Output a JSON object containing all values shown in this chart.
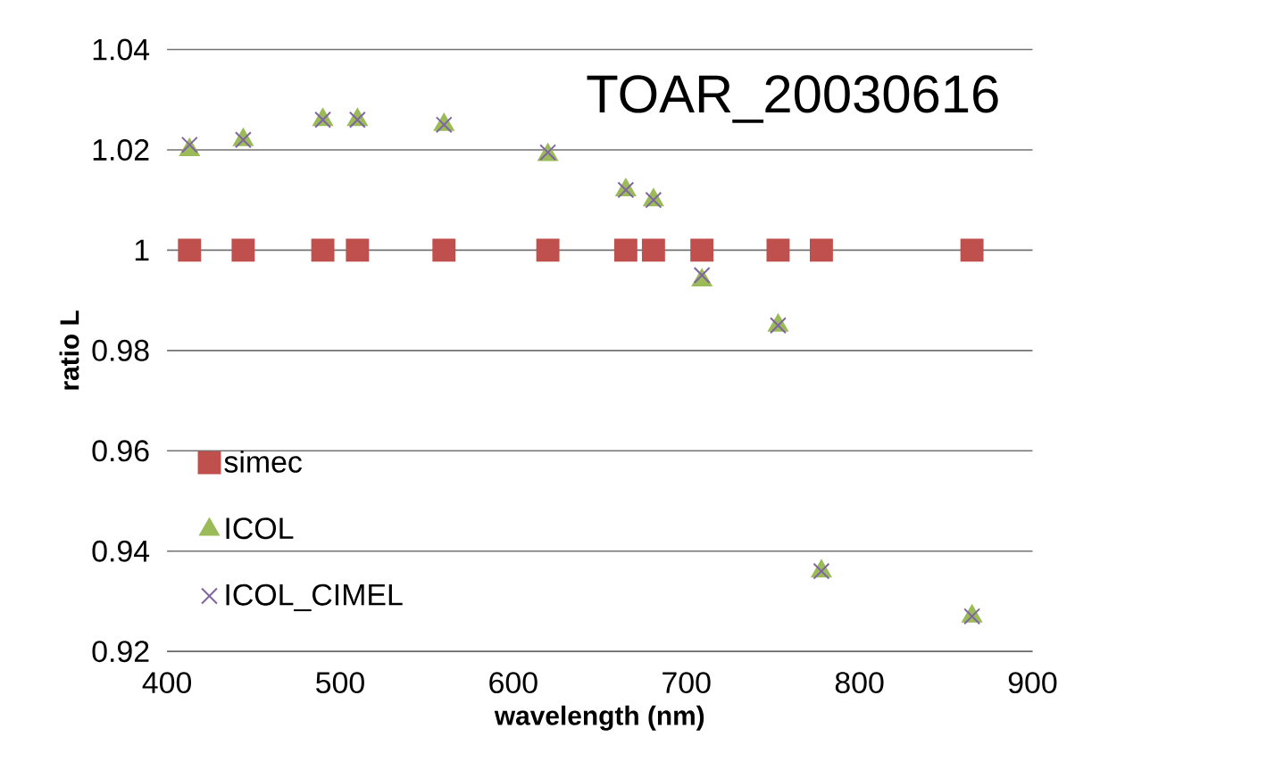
{
  "chart_data": {
    "type": "scatter",
    "title": "TOAR_20030616",
    "xlabel": "wavelength (nm)",
    "ylabel": "ratio L",
    "x": [
      413,
      444,
      490,
      510,
      560,
      620,
      665,
      681,
      709,
      753,
      778,
      865
    ],
    "xlim": [
      400,
      900
    ],
    "xticks": [
      400,
      500,
      600,
      700,
      800,
      900
    ],
    "ylim": [
      0.92,
      1.04
    ],
    "yticks": [
      {
        "value": 0.92,
        "label": "0.92"
      },
      {
        "value": 0.94,
        "label": "0.94"
      },
      {
        "value": 0.96,
        "label": "0.96"
      },
      {
        "value": 0.98,
        "label": "0.98"
      },
      {
        "value": 1,
        "label": "1"
      },
      {
        "value": 1.02,
        "label": "1.02"
      },
      {
        "value": 1.04,
        "label": "1.04"
      }
    ],
    "grid": "y",
    "legend": "left",
    "series": [
      {
        "name": "simec",
        "color": "#c0504d",
        "marker": "square",
        "values": [
          1,
          1,
          1,
          1,
          1,
          1,
          1,
          1,
          1,
          1,
          1,
          1
        ]
      },
      {
        "name": "ICOL",
        "color": "#9bbb59",
        "marker": "triangle",
        "values": [
          1.02,
          1.022,
          1.026,
          1.026,
          1.025,
          1.019,
          1.012,
          1.01,
          0.994,
          0.985,
          0.936,
          0.927
        ]
      },
      {
        "name": "ICOL_CIMEL",
        "color": "#8064a2",
        "marker": "cross",
        "values": [
          1.021,
          1.022,
          1.026,
          1.026,
          1.025,
          1.0195,
          1.012,
          1.01,
          0.995,
          0.985,
          0.936,
          0.927
        ]
      }
    ]
  }
}
